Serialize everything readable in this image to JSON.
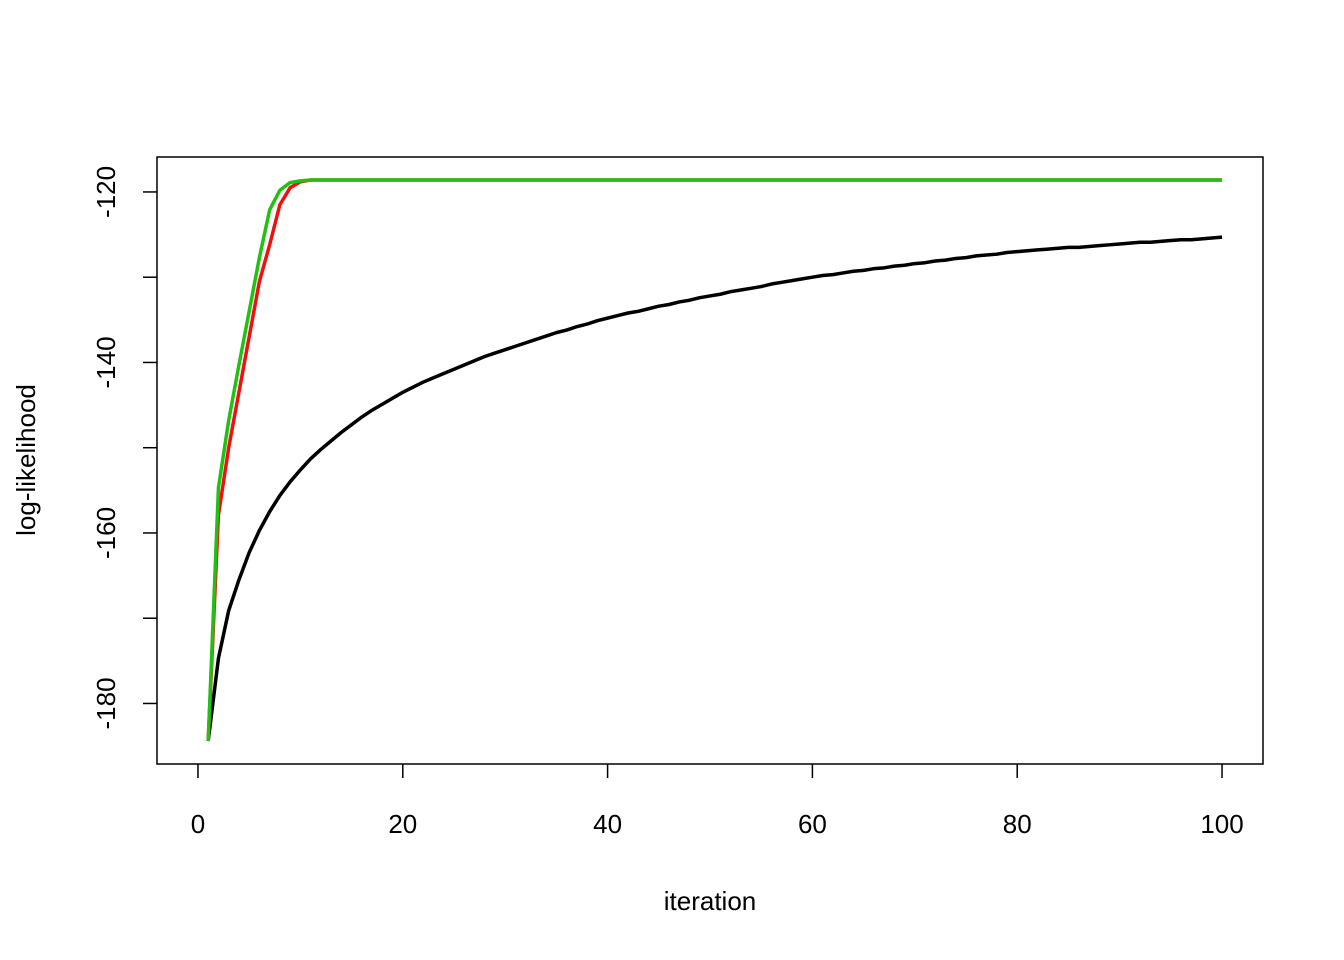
{
  "chart_data": {
    "type": "line",
    "xlabel": "iteration",
    "ylabel": "log-likelihood",
    "x": [
      1,
      2,
      3,
      4,
      5,
      6,
      7,
      8,
      9,
      10,
      11,
      12,
      13,
      14,
      15,
      16,
      17,
      18,
      19,
      20,
      21,
      22,
      23,
      24,
      25,
      26,
      27,
      28,
      29,
      30,
      31,
      32,
      33,
      34,
      35,
      36,
      37,
      38,
      39,
      40,
      41,
      42,
      43,
      44,
      45,
      46,
      47,
      48,
      49,
      50,
      51,
      52,
      53,
      54,
      55,
      56,
      57,
      58,
      59,
      60,
      61,
      62,
      63,
      64,
      65,
      66,
      67,
      68,
      69,
      70,
      71,
      72,
      73,
      74,
      75,
      76,
      77,
      78,
      79,
      80,
      81,
      82,
      83,
      84,
      85,
      86,
      87,
      88,
      89,
      90,
      91,
      92,
      93,
      94,
      95,
      96,
      97,
      98,
      99,
      100
    ],
    "series": [
      {
        "color": "#000000",
        "values": [
          -184.4,
          -174.7,
          -169.1,
          -165.5,
          -162.3,
          -159.7,
          -157.5,
          -155.6,
          -154.0,
          -152.6,
          -151.3,
          -150.2,
          -149.2,
          -148.2,
          -147.3,
          -146.4,
          -145.6,
          -144.9,
          -144.2,
          -143.5,
          -142.9,
          -142.3,
          -141.8,
          -141.3,
          -140.8,
          -140.3,
          -139.8,
          -139.3,
          -138.9,
          -138.5,
          -138.1,
          -137.7,
          -137.3,
          -136.9,
          -136.5,
          -136.2,
          -135.8,
          -135.5,
          -135.1,
          -134.8,
          -134.5,
          -134.2,
          -134.0,
          -133.7,
          -133.4,
          -133.2,
          -132.9,
          -132.7,
          -132.4,
          -132.2,
          -132.0,
          -131.7,
          -131.5,
          -131.3,
          -131.1,
          -130.8,
          -130.6,
          -130.4,
          -130.2,
          -130.0,
          -129.8,
          -129.7,
          -129.5,
          -129.3,
          -129.2,
          -129.0,
          -128.9,
          -128.7,
          -128.6,
          -128.4,
          -128.3,
          -128.1,
          -128.0,
          -127.8,
          -127.7,
          -127.5,
          -127.4,
          -127.3,
          -127.1,
          -127.0,
          -126.9,
          -126.8,
          -126.7,
          -126.6,
          -126.5,
          -126.5,
          -126.4,
          -126.3,
          -126.2,
          -126.1,
          -126.0,
          -125.9,
          -125.9,
          -125.8,
          -125.7,
          -125.6,
          -125.6,
          -125.5,
          -125.4,
          -125.3
        ]
      },
      {
        "color": "#ee1111",
        "values": [
          -184.4,
          -157.9,
          -150.0,
          -143.5,
          -137.0,
          -130.5,
          -126.2,
          -121.5,
          -119.5,
          -118.8,
          -118.6,
          -118.6,
          -118.6,
          -118.6,
          -118.6,
          -118.6,
          -118.6,
          -118.6,
          -118.6,
          -118.6,
          -118.6,
          -118.6,
          -118.6,
          -118.6,
          -118.6,
          -118.6,
          -118.6,
          -118.6,
          -118.6,
          -118.6,
          -118.6,
          -118.6,
          -118.6,
          -118.6,
          -118.6,
          -118.6,
          -118.6,
          -118.6,
          -118.6,
          -118.6,
          -118.6,
          -118.6,
          -118.6,
          -118.6,
          -118.6,
          -118.6,
          -118.6,
          -118.6,
          -118.6,
          -118.6,
          -118.6,
          -118.6,
          -118.6,
          -118.6,
          -118.6,
          -118.6,
          -118.6,
          -118.6,
          -118.6,
          -118.6,
          -118.6,
          -118.6,
          -118.6,
          -118.6,
          -118.6,
          -118.6,
          -118.6,
          -118.6,
          -118.6,
          -118.6,
          -118.6,
          -118.6,
          -118.6,
          -118.6,
          -118.6,
          -118.6,
          -118.6,
          -118.6,
          -118.6,
          -118.6,
          -118.6,
          -118.6,
          -118.6,
          -118.6,
          -118.6,
          -118.6,
          -118.6,
          -118.6,
          -118.6,
          -118.6,
          -118.6,
          -118.6,
          -118.6,
          -118.6,
          -118.6,
          -118.6,
          -118.6,
          -118.6,
          -118.6,
          -118.6
        ]
      },
      {
        "color": "#22c012",
        "values": [
          -184.4,
          -154.7,
          -146.8,
          -140.3,
          -134.0,
          -127.7,
          -122.1,
          -119.8,
          -118.9,
          -118.7,
          -118.6,
          -118.6,
          -118.6,
          -118.6,
          -118.6,
          -118.6,
          -118.6,
          -118.6,
          -118.6,
          -118.6,
          -118.6,
          -118.6,
          -118.6,
          -118.6,
          -118.6,
          -118.6,
          -118.6,
          -118.6,
          -118.6,
          -118.6,
          -118.6,
          -118.6,
          -118.6,
          -118.6,
          -118.6,
          -118.6,
          -118.6,
          -118.6,
          -118.6,
          -118.6,
          -118.6,
          -118.6,
          -118.6,
          -118.6,
          -118.6,
          -118.6,
          -118.6,
          -118.6,
          -118.6,
          -118.6,
          -118.6,
          -118.6,
          -118.6,
          -118.6,
          -118.6,
          -118.6,
          -118.6,
          -118.6,
          -118.6,
          -118.6,
          -118.6,
          -118.6,
          -118.6,
          -118.6,
          -118.6,
          -118.6,
          -118.6,
          -118.6,
          -118.6,
          -118.6,
          -118.6,
          -118.6,
          -118.6,
          -118.6,
          -118.6,
          -118.6,
          -118.6,
          -118.6,
          -118.6,
          -118.6,
          -118.6,
          -118.6,
          -118.6,
          -118.6,
          -118.6,
          -118.6,
          -118.6,
          -118.6,
          -118.6,
          -118.6,
          -118.6,
          -118.6,
          -118.6,
          -118.6,
          -118.6,
          -118.6,
          -118.6,
          -118.6,
          -118.6,
          -118.6
        ]
      }
    ],
    "xlim": [
      -4,
      104
    ],
    "ylim": [
      -187.1,
      -115.9
    ],
    "xticks": [
      0,
      20,
      40,
      60,
      80,
      100
    ],
    "yticks": [
      -180,
      -160,
      -140,
      -120
    ],
    "yticks_unlabeled": [
      -170,
      -150,
      -130
    ]
  }
}
